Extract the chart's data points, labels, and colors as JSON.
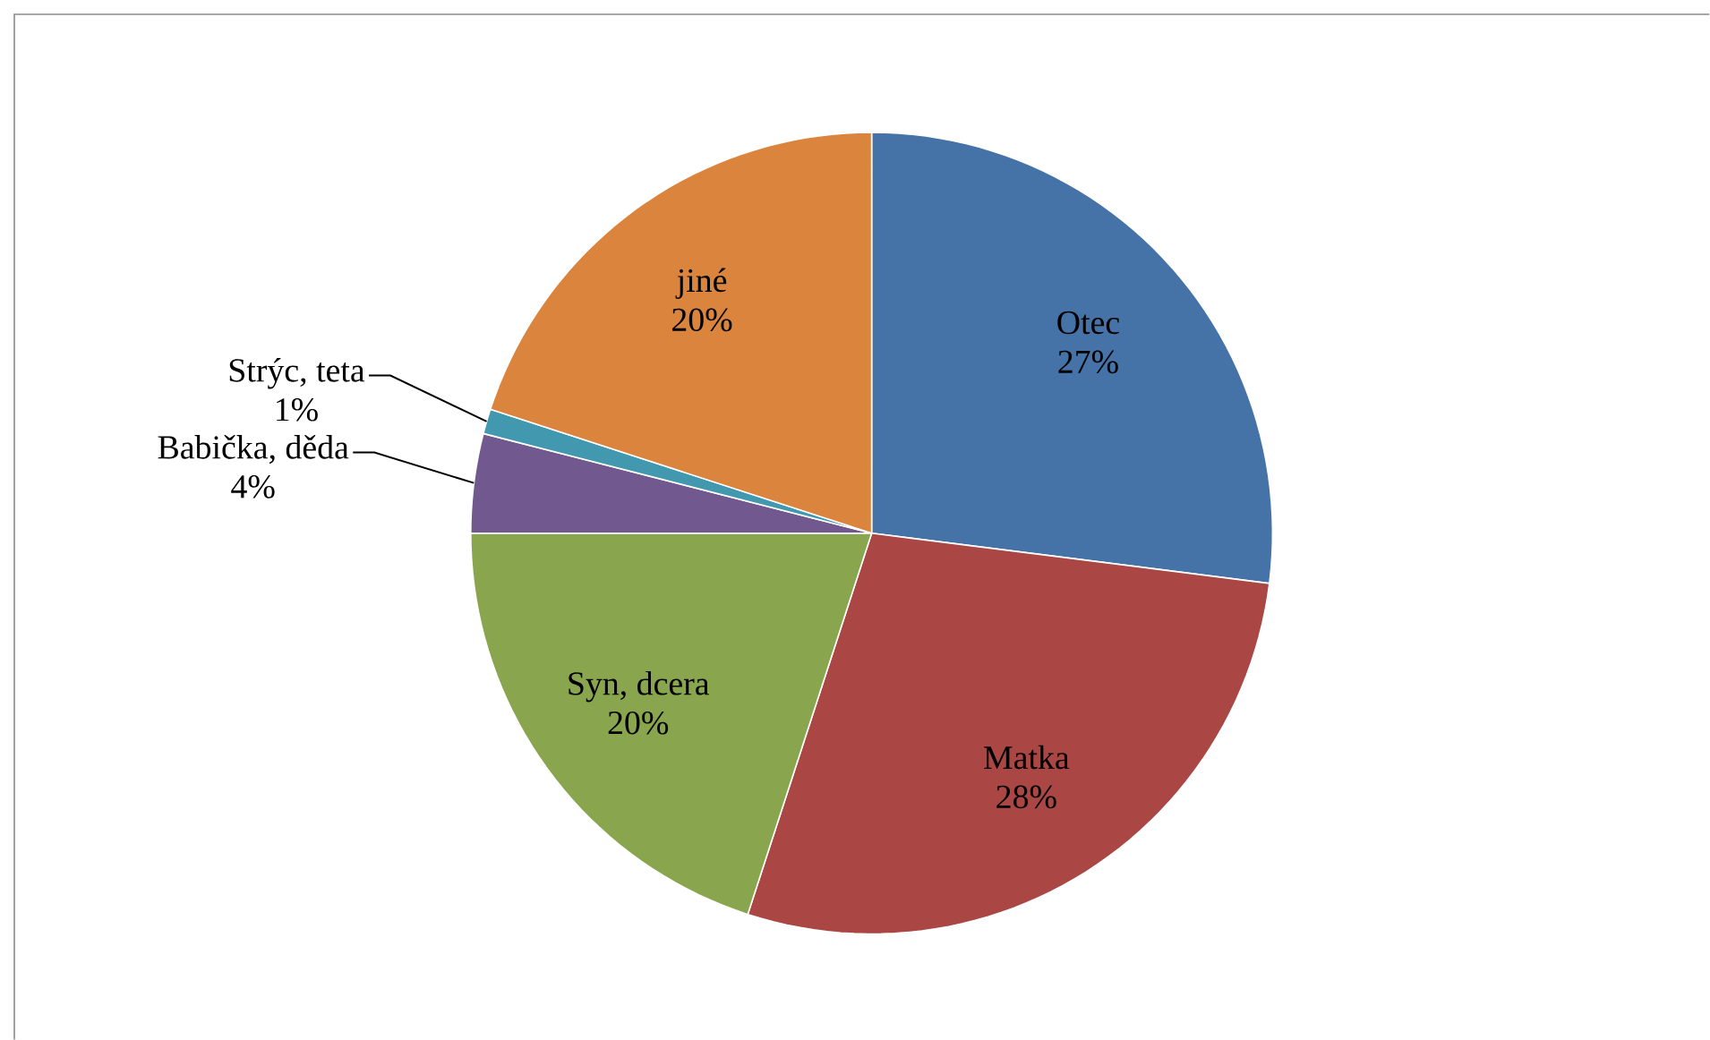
{
  "chart_data": {
    "type": "pie",
    "categories": [
      "Otec",
      "Matka",
      "Syn, dcera",
      "Babička, děda",
      "Strýc, teta",
      "jiné"
    ],
    "values": [
      27,
      28,
      20,
      4,
      1,
      20
    ],
    "colors": [
      "#4572a7",
      "#aa4643",
      "#89a54e",
      "#71588f",
      "#4198af",
      "#db843d"
    ],
    "value_labels": [
      "27%",
      "28%",
      "20%",
      "4%",
      "1%",
      "20%"
    ]
  }
}
